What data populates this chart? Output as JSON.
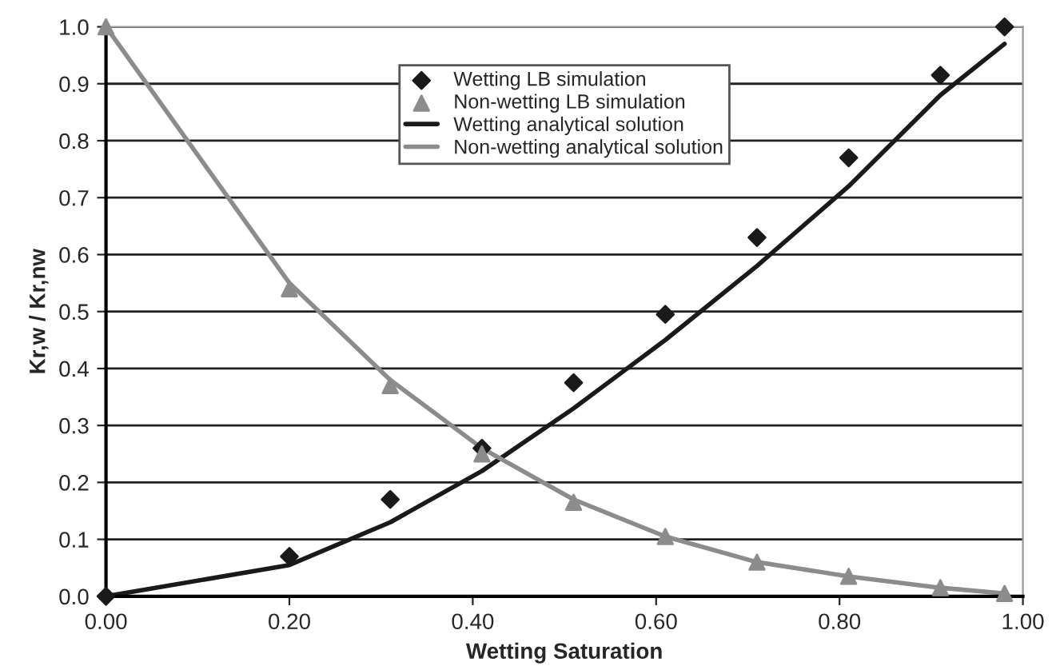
{
  "chart_data": {
    "type": "scatter",
    "xlabel": "Wetting Saturation",
    "ylabel": "Kr,w / Kr,nw",
    "xlim": [
      0,
      1
    ],
    "ylim": [
      0,
      1
    ],
    "xticks": [
      {
        "value": 0,
        "label": "0.00"
      },
      {
        "value": 0.2,
        "label": "0.20"
      },
      {
        "value": 0.4,
        "label": "0.40"
      },
      {
        "value": 0.6,
        "label": "0.60"
      },
      {
        "value": 0.8,
        "label": "0.80"
      },
      {
        "value": 1,
        "label": "1.00"
      }
    ],
    "yticks": [
      {
        "value": 0,
        "label": "0.0"
      },
      {
        "value": 0.1,
        "label": "0.1"
      },
      {
        "value": 0.2,
        "label": "0.2"
      },
      {
        "value": 0.3,
        "label": "0.3"
      },
      {
        "value": 0.4,
        "label": "0.4"
      },
      {
        "value": 0.5,
        "label": "0.5"
      },
      {
        "value": 0.6,
        "label": "0.6"
      },
      {
        "value": 0.7,
        "label": "0.7"
      },
      {
        "value": 0.8,
        "label": "0.8"
      },
      {
        "value": 0.9,
        "label": "0.9"
      },
      {
        "value": 1,
        "label": "1.0"
      }
    ],
    "grid": "y",
    "legend": "top",
    "x": [
      0,
      0.2,
      0.31,
      0.41,
      0.51,
      0.61,
      0.71,
      0.81,
      0.91,
      0.98
    ],
    "series": [
      {
        "name": "Wetting LB simulation",
        "marker": "diamond",
        "color": "#1a1a1a",
        "values": [
          0,
          0.07,
          0.17,
          0.26,
          0.375,
          0.495,
          0.63,
          0.77,
          0.915,
          1.0
        ]
      },
      {
        "name": "Non-wetting LB simulation",
        "marker": "triangle",
        "color": "#8c8c8c",
        "values": [
          1.0,
          0.54,
          0.37,
          0.25,
          0.165,
          0.105,
          0.06,
          0.035,
          0.015,
          0.005
        ]
      },
      {
        "name": "Wetting analytical solution",
        "type": "line",
        "color": "#1a1a1a",
        "values": [
          0,
          0.055,
          0.13,
          0.22,
          0.33,
          0.45,
          0.58,
          0.72,
          0.88,
          0.97
        ]
      },
      {
        "name": "Non-wetting analytical solution",
        "type": "line",
        "color": "#8c8c8c",
        "values": [
          1.0,
          0.55,
          0.38,
          0.26,
          0.17,
          0.105,
          0.06,
          0.035,
          0.015,
          0.005
        ]
      }
    ]
  }
}
